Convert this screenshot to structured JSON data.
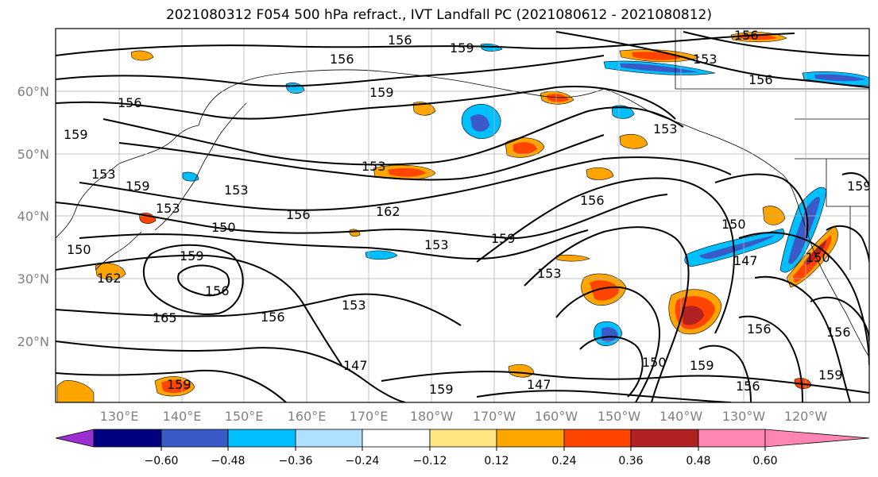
{
  "title": "2021080312 F054 500 hPa refract., IVT Landfall PC (2021080612 - 2021080812)",
  "lat_labels": [
    "60°N",
    "50°N",
    "40°N",
    "30°N",
    "20°N"
  ],
  "lon_labels": [
    "130°E",
    "140°E",
    "150°E",
    "160°E",
    "170°E",
    "180°W",
    "170°W",
    "160°W",
    "150°W",
    "140°W",
    "130°W",
    "120°W"
  ],
  "colorbar": {
    "ticks": [
      "−0.60",
      "−0.48",
      "−0.36",
      "−0.24",
      "−0.12",
      "0.12",
      "0.24",
      "0.36",
      "0.48",
      "0.60"
    ],
    "colors": [
      "#9b30d0",
      "#000080",
      "#3a5bc7",
      "#00bfff",
      "#b0e0ff",
      "#ffffff",
      "#ffe680",
      "#ffa500",
      "#ff4500",
      "#b22222",
      "#ff85b3"
    ]
  },
  "contour_labels": [
    {
      "text": "156"
    },
    {
      "text": "159"
    },
    {
      "text": "156"
    },
    {
      "text": "159"
    },
    {
      "text": "153"
    },
    {
      "text": "156"
    },
    {
      "text": "156"
    },
    {
      "text": "156"
    },
    {
      "text": "153"
    },
    {
      "text": "159"
    },
    {
      "text": "153"
    },
    {
      "text": "153"
    },
    {
      "text": "153"
    },
    {
      "text": "159"
    },
    {
      "text": "153"
    },
    {
      "text": "156"
    },
    {
      "text": "162"
    },
    {
      "text": "156"
    },
    {
      "text": "150"
    },
    {
      "text": "150"
    },
    {
      "text": "159"
    },
    {
      "text": "153"
    },
    {
      "text": "159"
    },
    {
      "text": "162"
    },
    {
      "text": "156"
    },
    {
      "text": "156"
    },
    {
      "text": "153"
    },
    {
      "text": "165"
    },
    {
      "text": "147"
    },
    {
      "text": "150"
    },
    {
      "text": "147"
    },
    {
      "text": "159"
    },
    {
      "text": "156"
    },
    {
      "text": "153"
    },
    {
      "text": "156"
    },
    {
      "text": "159"
    },
    {
      "text": "150"
    },
    {
      "text": "150"
    },
    {
      "text": "159"
    },
    {
      "text": "147"
    },
    {
      "text": "159"
    },
    {
      "text": "156"
    },
    {
      "text": "159"
    }
  ]
}
